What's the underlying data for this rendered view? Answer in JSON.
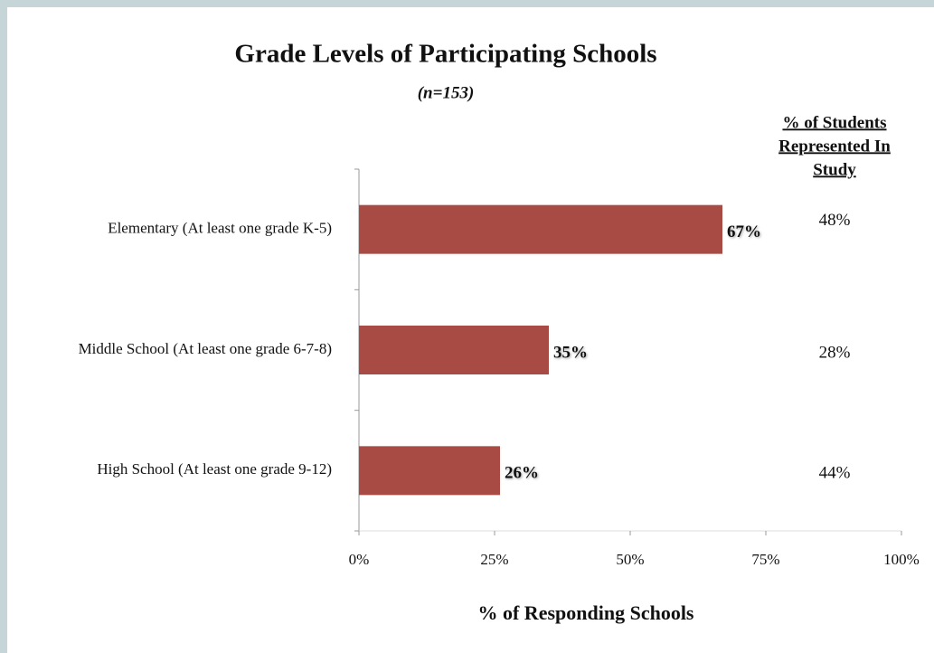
{
  "chart_data": {
    "type": "bar",
    "orientation": "horizontal",
    "title": "Grade Levels of Participating Schools",
    "subtitle": "(n=153)",
    "categories": [
      "Elementary (At least one grade K-5)",
      "Middle School (At least one grade 6-7-8)",
      "High School (At least one grade 9-12)"
    ],
    "values": [
      67,
      35,
      26
    ],
    "value_labels": [
      "67%",
      "35%",
      "26%"
    ],
    "color": "#a84b45",
    "xlim": [
      0,
      100
    ],
    "xticks": [
      {
        "value": 0,
        "label": "0%"
      },
      {
        "value": 25,
        "label": "25%"
      },
      {
        "value": 50,
        "label": "50%"
      },
      {
        "value": 75,
        "label": "75%"
      },
      {
        "value": 100,
        "label": "100%"
      }
    ],
    "xlabel": "% of Responding Schools",
    "side_column": {
      "header": [
        "% of Students",
        "Represented In",
        "Study"
      ],
      "values": [
        48,
        28,
        44
      ],
      "value_labels": [
        "48%",
        "28%",
        "44%"
      ]
    }
  }
}
